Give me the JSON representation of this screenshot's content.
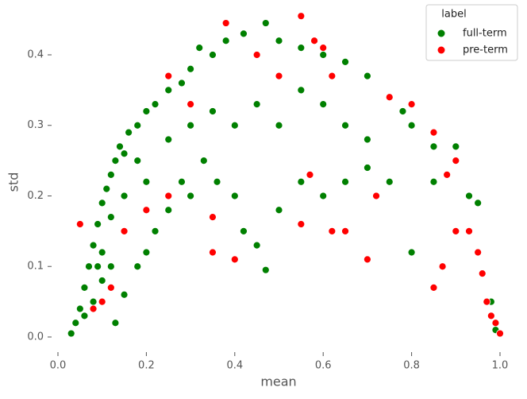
{
  "chart_data": {
    "type": "scatter",
    "x_label": "mean",
    "y_label": "std",
    "legend_title": "label",
    "legend_position": "upper right",
    "grid": false,
    "xlim": [
      -0.035,
      1.035
    ],
    "ylim": [
      -0.022,
      0.46
    ],
    "xticks": [
      {
        "value": 0,
        "label": "0.0"
      },
      {
        "value": 0.2,
        "label": "0.2"
      },
      {
        "value": 0.4,
        "label": "0.4"
      },
      {
        "value": 0.6,
        "label": "0.6"
      },
      {
        "value": 0.8,
        "label": "0.8"
      },
      {
        "value": 1,
        "label": "1.0"
      }
    ],
    "yticks": [
      {
        "value": 0,
        "label": "0.0"
      },
      {
        "value": 0.1,
        "label": "0.1"
      },
      {
        "value": 0.2,
        "label": "0.2"
      },
      {
        "value": 0.3,
        "label": "0.3"
      },
      {
        "value": 0.4,
        "label": "0.4"
      }
    ],
    "series": [
      {
        "name": "full-term",
        "color": "#008000",
        "x": [
          0.03,
          0.04,
          0.05,
          0.06,
          0.07,
          0.08,
          0.09,
          0.1,
          0.11,
          0.12,
          0.13,
          0.14,
          0.15,
          0.16,
          0.18,
          0.2,
          0.22,
          0.25,
          0.28,
          0.3,
          0.32,
          0.35,
          0.38,
          0.42,
          0.47,
          0.5,
          0.55,
          0.6,
          0.65,
          0.7,
          0.75,
          0.78,
          0.8,
          0.85,
          0.9,
          0.93,
          0.95,
          0.98,
          0.99,
          0.08,
          0.1,
          0.12,
          0.13,
          0.15,
          0.18,
          0.2,
          0.22,
          0.25,
          0.28,
          0.3,
          0.33,
          0.36,
          0.4,
          0.42,
          0.45,
          0.47,
          0.5,
          0.55,
          0.6,
          0.65,
          0.7,
          0.75,
          0.8,
          0.85,
          0.2,
          0.25,
          0.3,
          0.35,
          0.4,
          0.45,
          0.5,
          0.55,
          0.6,
          0.65,
          0.7,
          0.15,
          0.18,
          0.1,
          0.12,
          0.06,
          0.09
        ],
        "values": [
          0.005,
          0.02,
          0.04,
          0.07,
          0.1,
          0.13,
          0.16,
          0.19,
          0.21,
          0.23,
          0.25,
          0.27,
          0.26,
          0.29,
          0.3,
          0.32,
          0.33,
          0.35,
          0.36,
          0.38,
          0.41,
          0.4,
          0.42,
          0.43,
          0.445,
          0.42,
          0.41,
          0.4,
          0.39,
          0.37,
          0.34,
          0.32,
          0.3,
          0.27,
          0.27,
          0.2,
          0.19,
          0.05,
          0.01,
          0.05,
          0.08,
          0.1,
          0.02,
          0.06,
          0.1,
          0.12,
          0.15,
          0.18,
          0.22,
          0.2,
          0.25,
          0.22,
          0.2,
          0.15,
          0.13,
          0.095,
          0.18,
          0.22,
          0.2,
          0.22,
          0.24,
          0.22,
          0.12,
          0.22,
          0.22,
          0.28,
          0.3,
          0.32,
          0.3,
          0.33,
          0.3,
          0.35,
          0.33,
          0.3,
          0.28,
          0.2,
          0.25,
          0.12,
          0.17,
          0.03,
          0.1
        ]
      },
      {
        "name": "pre-term",
        "color": "#ff0000",
        "x": [
          0.38,
          0.55,
          0.6,
          0.58,
          0.62,
          0.75,
          0.8,
          0.85,
          0.88,
          0.9,
          0.93,
          0.95,
          0.96,
          0.97,
          0.98,
          0.99,
          1.0,
          0.87,
          0.85,
          0.7,
          0.65,
          0.62,
          0.4,
          0.35,
          0.25,
          0.2,
          0.15,
          0.1,
          0.08,
          0.05,
          0.12,
          0.3,
          0.25,
          0.35,
          0.55,
          0.45,
          0.5,
          0.72,
          0.9,
          0.57
        ],
        "values": [
          0.445,
          0.455,
          0.41,
          0.42,
          0.37,
          0.34,
          0.33,
          0.29,
          0.23,
          0.15,
          0.15,
          0.12,
          0.09,
          0.05,
          0.03,
          0.02,
          0.005,
          0.1,
          0.07,
          0.11,
          0.15,
          0.15,
          0.11,
          0.12,
          0.2,
          0.18,
          0.15,
          0.05,
          0.04,
          0.16,
          0.07,
          0.33,
          0.37,
          0.17,
          0.16,
          0.4,
          0.37,
          0.2,
          0.25,
          0.23
        ]
      }
    ]
  }
}
